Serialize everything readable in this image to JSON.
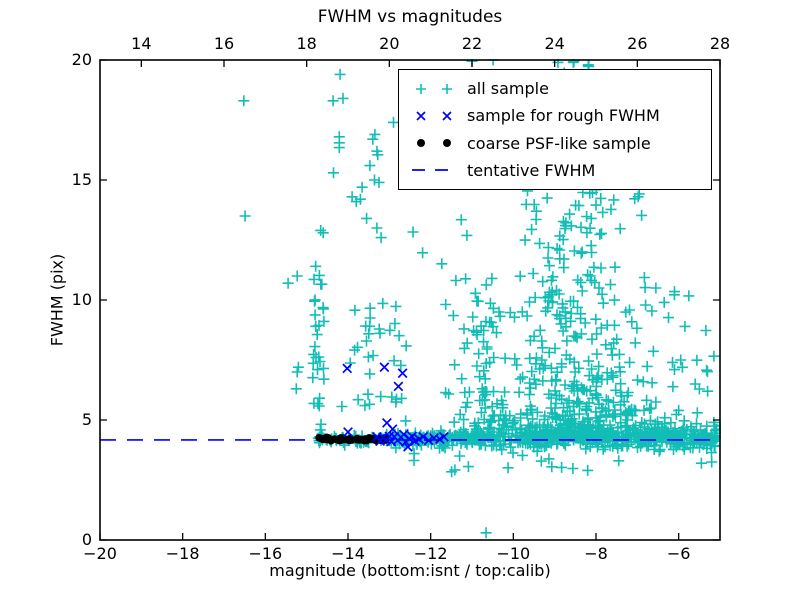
{
  "title": "FWHM vs magnitudes",
  "xlabel": "magnitude (bottom:isnt / top:calib)",
  "ylabel": "FWHM (pix)",
  "colors": {
    "all_sample": "#12bdb6",
    "rough_fwhm": "#0000ff",
    "psf_like": "#000000",
    "tentative_line": "#0000ff",
    "axis": "#000000"
  },
  "axes": {
    "x_bottom": {
      "range": [
        -20,
        -5
      ],
      "ticks": [
        -20,
        -18,
        -16,
        -14,
        -12,
        -10,
        -8,
        -6
      ],
      "labels": [
        "−20",
        "−18",
        "−16",
        "−14",
        "−12",
        "−10",
        "−8",
        "−6"
      ]
    },
    "x_top": {
      "range": [
        13,
        28
      ],
      "ticks": [
        14,
        16,
        18,
        20,
        22,
        24,
        26,
        28
      ],
      "labels": [
        "14",
        "16",
        "18",
        "20",
        "22",
        "24",
        "26",
        "28"
      ]
    },
    "y": {
      "range": [
        0,
        20
      ],
      "ticks": [
        0,
        5,
        10,
        15,
        20
      ],
      "labels": [
        "0",
        "5",
        "10",
        "15",
        "20"
      ]
    }
  },
  "legend": {
    "entries": [
      {
        "label": "all sample",
        "marker": "plus",
        "color": "#12bdb6"
      },
      {
        "label": "sample for rough FWHM",
        "marker": "cross",
        "color": "#0000ff"
      },
      {
        "label": "coarse PSF-like sample",
        "marker": "dot",
        "color": "#000000"
      },
      {
        "label": "tentative FWHM",
        "marker": "dash",
        "color": "#0000ff"
      }
    ]
  },
  "chart_data": {
    "type": "scatter",
    "title": "FWHM vs magnitudes",
    "xlabel": "magnitude (bottom:isnt / top:calib)",
    "ylabel": "FWHM (pix)",
    "xlim": [
      -20,
      -5
    ],
    "ylim": [
      0,
      20
    ],
    "x_top_lim": [
      13,
      28
    ],
    "grid": false,
    "legend_position": "upper right",
    "tentative_fwhm": 4.17,
    "seed": 1234567,
    "series": [
      {
        "name": "all sample",
        "marker": "plus",
        "color": "#12bdb6"
      },
      {
        "name": "sample for rough FWHM",
        "marker": "cross",
        "color": "#0000ff"
      },
      {
        "name": "coarse PSF-like sample",
        "marker": "dot",
        "color": "#000000"
      },
      {
        "name": "tentative FWHM",
        "type": "hline",
        "color": "#0000ff",
        "y": 4.17
      }
    ],
    "all_sample_outliers": [
      [
        -16.52,
        18.3
      ],
      [
        -16.49,
        13.5
      ],
      [
        -15.45,
        10.7
      ],
      [
        -15.23,
        11.0
      ],
      [
        -15.23,
        7.0
      ],
      [
        -15.25,
        6.3
      ],
      [
        -15.2,
        7.2
      ],
      [
        -14.36,
        18.3
      ],
      [
        -14.19,
        19.4
      ],
      [
        -14.12,
        18.4
      ],
      [
        -14.35,
        15.3
      ],
      [
        -14.21,
        16.8
      ],
      [
        -14.21,
        16.55
      ],
      [
        -14.21,
        16.35
      ],
      [
        -14.66,
        12.9
      ],
      [
        -14.6,
        12.8
      ],
      [
        -13.4,
        16.7
      ],
      [
        -13.35,
        16.9
      ],
      [
        -12.9,
        17.4
      ],
      [
        -13.3,
        16.2
      ],
      [
        -13.28,
        16.05
      ],
      [
        -13.47,
        15.6
      ],
      [
        -13.36,
        15.0
      ],
      [
        -13.66,
        14.7
      ],
      [
        -13.9,
        14.3
      ],
      [
        -13.8,
        14.1
      ],
      [
        -13.7,
        14.2
      ],
      [
        -13.25,
        14.9
      ],
      [
        -13.2,
        12.6
      ],
      [
        -13.3,
        13.0
      ],
      [
        -13.55,
        13.4
      ],
      [
        -11.0,
        19.95
      ],
      [
        -10.49,
        20.0
      ],
      [
        -8.92,
        19.9
      ],
      [
        -8.55,
        19.9
      ],
      [
        -8.62,
        19.3
      ],
      [
        -8.3,
        18.85
      ],
      [
        -9.1,
        18.6
      ],
      [
        -6.98,
        14.3
      ],
      [
        -6.1,
        7.1
      ],
      [
        -5.95,
        7.5
      ],
      [
        -6.15,
        7.4
      ],
      [
        -6.55,
        5.75
      ],
      [
        -6.0,
        5.4
      ],
      [
        -5.55,
        5.3
      ],
      [
        -5.85,
        8.9
      ],
      [
        -6.35,
        9.9
      ],
      [
        -6.1,
        10.35
      ],
      [
        -6.55,
        10.5
      ],
      [
        -5.3,
        6.2
      ],
      [
        -5.15,
        4.9
      ],
      [
        -5.6,
        6.5
      ],
      [
        -10.66,
        0.3
      ],
      [
        -9.07,
        3.05
      ],
      [
        -5.2,
        3.25
      ],
      [
        -5.45,
        3.2
      ],
      [
        -7.45,
        3.3
      ],
      [
        -8.2,
        2.9
      ],
      [
        -12.4,
        3.6
      ],
      [
        -11.3,
        3.5
      ]
    ],
    "all_sample_clusters": [
      {
        "shape": "uniform",
        "n": 30,
        "m": [
          -14.87,
          -14.57
        ],
        "f": [
          4.35,
          12.5
        ]
      },
      {
        "shape": "uniform",
        "n": 34,
        "m": [
          -14.15,
          -12.55
        ],
        "f": [
          4.9,
          10.2
        ]
      },
      {
        "shape": "uniform",
        "n": 10,
        "m": [
          -12.45,
          -10.7
        ],
        "f": [
          9.0,
          14.5
        ]
      },
      {
        "shape": "band",
        "n": 55,
        "m": [
          -14.8,
          -13.0
        ],
        "f_mean": 4.2,
        "f_sigma": 0.1,
        "f_min": 3.95,
        "f_max": 4.5
      },
      {
        "shape": "band",
        "n": 150,
        "m": [
          -13.0,
          -10.7
        ],
        "f_mean": 4.2,
        "f_sigma": 0.13,
        "f_min": 3.8,
        "f_max": 4.6
      },
      {
        "shape": "band",
        "n": 160,
        "m": [
          -7.0,
          -5.0
        ],
        "f_mean": 4.25,
        "f_sigma": 0.25,
        "f_min": 3.3,
        "f_max": 5.0
      },
      {
        "shape": "band",
        "n": 130,
        "m": [
          -10.8,
          -6.6
        ],
        "f_mean": 4.1,
        "f_sigma": 0.18,
        "f_min": 3.6,
        "f_max": 4.5
      },
      {
        "shape": "band",
        "n": 10,
        "m": [
          -12.8,
          -7.6
        ],
        "f_mean": 3.3,
        "f_sigma": 0.3,
        "f_min": 2.8,
        "f_max": 3.7
      },
      {
        "shape": "triangle",
        "n": 760,
        "m_center": -8.45,
        "w0": 1.9,
        "w1": 0.5,
        "f_min": 4.3,
        "f_max": 20,
        "p": 4
      },
      {
        "shape": "triangle",
        "n": 80,
        "m_center": -10.8,
        "w0": 0.85,
        "w1": 0.45,
        "f_min": 4.4,
        "f_max": 11,
        "p": 2.6
      },
      {
        "shape": "uniform",
        "n": 16,
        "m": [
          -6.9,
          -5.1
        ],
        "f": [
          4.8,
          10.6
        ]
      }
    ],
    "rough_fwhm_points": [
      [
        -14.02,
        7.15
      ],
      [
        -13.12,
        7.2
      ],
      [
        -12.68,
        6.95
      ],
      [
        -12.78,
        6.4
      ],
      [
        -13.06,
        4.88
      ],
      [
        -12.92,
        4.62
      ],
      [
        -14.0,
        4.5
      ],
      [
        -12.55,
        3.88
      ],
      [
        -13.3,
        4.3
      ],
      [
        -13.22,
        4.12
      ],
      [
        -13.15,
        4.28
      ],
      [
        -13.08,
        4.18
      ],
      [
        -13.0,
        4.32
      ],
      [
        -12.95,
        4.1
      ],
      [
        -12.88,
        4.3
      ],
      [
        -12.8,
        4.15
      ],
      [
        -12.72,
        4.28
      ],
      [
        -12.65,
        4.4
      ],
      [
        -12.6,
        4.08
      ],
      [
        -12.52,
        4.22
      ],
      [
        -12.45,
        4.32
      ],
      [
        -12.38,
        4.12
      ],
      [
        -12.28,
        4.2
      ],
      [
        -12.18,
        4.3
      ],
      [
        -12.05,
        4.15
      ],
      [
        -11.92,
        4.25
      ],
      [
        -11.78,
        4.2
      ],
      [
        -11.68,
        4.3
      ]
    ],
    "psf_like_cluster": {
      "shape": "uniform",
      "n": 44,
      "m": [
        -14.76,
        -13.02
      ],
      "f": [
        4.13,
        4.28
      ]
    }
  }
}
